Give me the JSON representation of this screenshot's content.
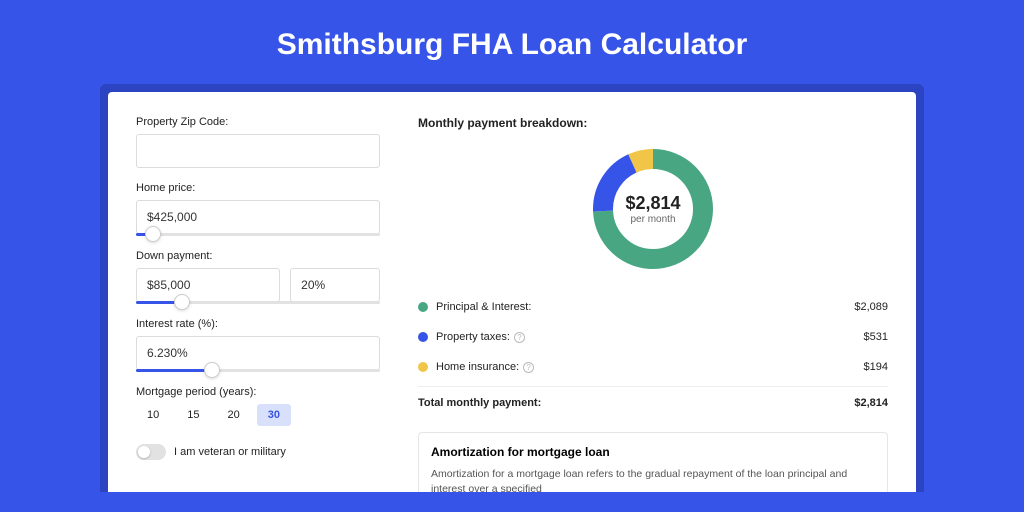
{
  "page_title": "Smithsburg FHA Loan Calculator",
  "form": {
    "zip": {
      "label": "Property Zip Code:",
      "value": ""
    },
    "home_price": {
      "label": "Home price:",
      "value": "$425,000",
      "slider_pct": 7
    },
    "down_payment": {
      "label": "Down payment:",
      "value": "$85,000",
      "pct_value": "20%",
      "slider_pct": 19
    },
    "interest_rate": {
      "label": "Interest rate (%):",
      "value": "6.230%",
      "slider_pct": 31
    },
    "mortgage_period": {
      "label": "Mortgage period (years):",
      "options": [
        "10",
        "15",
        "20",
        "30"
      ],
      "selected": "30"
    },
    "veteran": {
      "label": "I am veteran or military",
      "checked": false
    }
  },
  "breakdown": {
    "title": "Monthly payment breakdown:",
    "donut": {
      "center_value": "$2,814",
      "center_sub": "per month",
      "segments": [
        {
          "name": "principal_interest",
          "pct": 74.2,
          "color": "#49a683"
        },
        {
          "name": "property_taxes",
          "pct": 18.9,
          "color": "#3754e8"
        },
        {
          "name": "home_insurance",
          "pct": 6.9,
          "color": "#f1c548"
        }
      ]
    },
    "rows": [
      {
        "label": "Principal & Interest:",
        "value": "$2,089",
        "dot_color": "#49a683",
        "has_info": false
      },
      {
        "label": "Property taxes:",
        "value": "$531",
        "dot_color": "#3754e8",
        "has_info": true
      },
      {
        "label": "Home insurance:",
        "value": "$194",
        "dot_color": "#f1c548",
        "has_info": true
      }
    ],
    "total": {
      "label": "Total monthly payment:",
      "value": "$2,814"
    }
  },
  "amortization": {
    "title": "Amortization for mortgage loan",
    "text": "Amortization for a mortgage loan refers to the gradual repayment of the loan principal and interest over a specified"
  }
}
